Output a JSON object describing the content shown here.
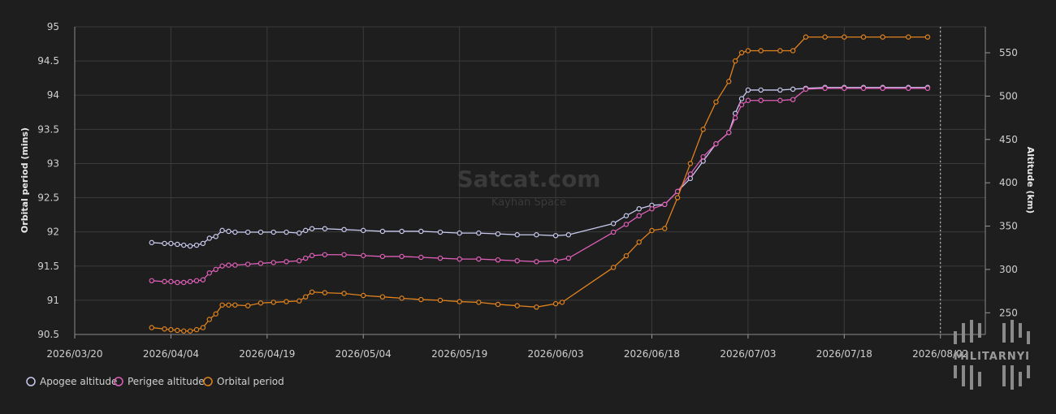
{
  "watermark": {
    "title": "Satcat.com",
    "subtitle": "Kayhan Space",
    "logo_text": "MILITARNYI"
  },
  "colors": {
    "background": "#1e1e1e",
    "grid": "#3b3b3b",
    "apogee": "#c9c9f0",
    "perigee": "#e05fb8",
    "period": "#e0821e"
  },
  "chart_data": {
    "type": "line",
    "xlabel": "",
    "ylabel": "Orbital period (mins)",
    "y2label": "Altitude (km)",
    "xlim": [
      "2026-03-20",
      "2026-08-09"
    ],
    "ylim": [
      90.5,
      95
    ],
    "y2lim": [
      225,
      580
    ],
    "x_ticks": [
      "2026/03/20",
      "2026/04/04",
      "2026/04/19",
      "2026/05/04",
      "2026/05/19",
      "2026/06/03",
      "2026/06/18",
      "2026/07/03",
      "2026/07/18",
      "2026/08/02"
    ],
    "y_ticks": [
      "90.5",
      "91",
      "91.5",
      "92",
      "92.5",
      "93",
      "93.5",
      "94",
      "94.5",
      "95"
    ],
    "y2_ticks": [
      "250",
      "300",
      "350",
      "400",
      "450",
      "500",
      "550"
    ],
    "grid": true,
    "legend_position": "bottom-left",
    "current_date_marker": "2026-08-02",
    "series": [
      {
        "name": "Apogee altitude",
        "axis": "right",
        "points": [
          [
            "2026-04-01",
            331
          ],
          [
            "2026-04-03",
            330
          ],
          [
            "2026-04-04",
            330
          ],
          [
            "2026-04-05",
            329
          ],
          [
            "2026-04-06",
            328
          ],
          [
            "2026-04-07",
            327
          ],
          [
            "2026-04-08",
            328
          ],
          [
            "2026-04-09",
            330
          ],
          [
            "2026-04-10",
            336
          ],
          [
            "2026-04-11",
            338
          ],
          [
            "2026-04-12",
            345
          ],
          [
            "2026-04-13",
            344
          ],
          [
            "2026-04-14",
            343
          ],
          [
            "2026-04-16",
            343
          ],
          [
            "2026-04-18",
            343
          ],
          [
            "2026-04-20",
            343
          ],
          [
            "2026-04-22",
            343
          ],
          [
            "2026-04-24",
            342
          ],
          [
            "2026-04-25",
            345
          ],
          [
            "2026-04-26",
            347
          ],
          [
            "2026-04-28",
            347
          ],
          [
            "2026-05-01",
            346
          ],
          [
            "2026-05-04",
            345
          ],
          [
            "2026-05-07",
            344
          ],
          [
            "2026-05-10",
            344
          ],
          [
            "2026-05-13",
            344
          ],
          [
            "2026-05-16",
            343
          ],
          [
            "2026-05-19",
            342
          ],
          [
            "2026-05-22",
            342
          ],
          [
            "2026-05-25",
            341
          ],
          [
            "2026-05-28",
            340
          ],
          [
            "2026-05-31",
            340
          ],
          [
            "2026-06-03",
            339
          ],
          [
            "2026-06-05",
            340
          ],
          [
            "2026-06-12",
            353
          ],
          [
            "2026-06-14",
            362
          ],
          [
            "2026-06-16",
            370
          ],
          [
            "2026-06-18",
            374
          ],
          [
            "2026-06-20",
            375
          ],
          [
            "2026-06-22",
            390
          ],
          [
            "2026-06-24",
            405
          ],
          [
            "2026-06-26",
            425
          ],
          [
            "2026-06-28",
            445
          ],
          [
            "2026-06-30",
            458
          ],
          [
            "2026-07-01",
            480
          ],
          [
            "2026-07-02",
            497
          ],
          [
            "2026-07-03",
            507
          ],
          [
            "2026-07-05",
            507
          ],
          [
            "2026-07-08",
            507
          ],
          [
            "2026-07-10",
            508
          ],
          [
            "2026-07-12",
            509
          ],
          [
            "2026-07-15",
            510
          ],
          [
            "2026-07-18",
            510
          ],
          [
            "2026-07-21",
            510
          ],
          [
            "2026-07-24",
            510
          ],
          [
            "2026-07-28",
            510
          ],
          [
            "2026-07-31",
            510
          ]
        ]
      },
      {
        "name": "Perigee altitude",
        "axis": "right",
        "points": [
          [
            "2026-04-01",
            287
          ],
          [
            "2026-04-03",
            286
          ],
          [
            "2026-04-04",
            286
          ],
          [
            "2026-04-05",
            285
          ],
          [
            "2026-04-06",
            285
          ],
          [
            "2026-04-07",
            286
          ],
          [
            "2026-04-08",
            287
          ],
          [
            "2026-04-09",
            288
          ],
          [
            "2026-04-10",
            296
          ],
          [
            "2026-04-11",
            300
          ],
          [
            "2026-04-12",
            304
          ],
          [
            "2026-04-13",
            305
          ],
          [
            "2026-04-14",
            305
          ],
          [
            "2026-04-16",
            306
          ],
          [
            "2026-04-18",
            307
          ],
          [
            "2026-04-20",
            308
          ],
          [
            "2026-04-22",
            309
          ],
          [
            "2026-04-24",
            310
          ],
          [
            "2026-04-25",
            313
          ],
          [
            "2026-04-26",
            316
          ],
          [
            "2026-04-28",
            317
          ],
          [
            "2026-05-01",
            317
          ],
          [
            "2026-05-04",
            316
          ],
          [
            "2026-05-07",
            315
          ],
          [
            "2026-05-10",
            315
          ],
          [
            "2026-05-13",
            314
          ],
          [
            "2026-05-16",
            313
          ],
          [
            "2026-05-19",
            312
          ],
          [
            "2026-05-22",
            312
          ],
          [
            "2026-05-25",
            311
          ],
          [
            "2026-05-28",
            310
          ],
          [
            "2026-05-31",
            309
          ],
          [
            "2026-06-03",
            310
          ],
          [
            "2026-06-05",
            313
          ],
          [
            "2026-06-12",
            343
          ],
          [
            "2026-06-14",
            352
          ],
          [
            "2026-06-16",
            362
          ],
          [
            "2026-06-18",
            370
          ],
          [
            "2026-06-20",
            375
          ],
          [
            "2026-06-22",
            390
          ],
          [
            "2026-06-24",
            410
          ],
          [
            "2026-06-26",
            430
          ],
          [
            "2026-06-28",
            445
          ],
          [
            "2026-06-30",
            458
          ],
          [
            "2026-07-01",
            475
          ],
          [
            "2026-07-02",
            490
          ],
          [
            "2026-07-03",
            495
          ],
          [
            "2026-07-05",
            495
          ],
          [
            "2026-07-08",
            495
          ],
          [
            "2026-07-10",
            496
          ],
          [
            "2026-07-12",
            508
          ],
          [
            "2026-07-15",
            509
          ],
          [
            "2026-07-18",
            509
          ],
          [
            "2026-07-21",
            509
          ],
          [
            "2026-07-24",
            509
          ],
          [
            "2026-07-28",
            509
          ],
          [
            "2026-07-31",
            509
          ]
        ]
      },
      {
        "name": "Orbital period",
        "axis": "left",
        "points": [
          [
            "2026-04-01",
            90.6
          ],
          [
            "2026-04-03",
            90.58
          ],
          [
            "2026-04-04",
            90.57
          ],
          [
            "2026-04-05",
            90.56
          ],
          [
            "2026-04-06",
            90.55
          ],
          [
            "2026-04-07",
            90.55
          ],
          [
            "2026-04-08",
            90.57
          ],
          [
            "2026-04-09",
            90.6
          ],
          [
            "2026-04-10",
            90.72
          ],
          [
            "2026-04-11",
            90.8
          ],
          [
            "2026-04-12",
            90.93
          ],
          [
            "2026-04-13",
            90.93
          ],
          [
            "2026-04-14",
            90.93
          ],
          [
            "2026-04-16",
            90.92
          ],
          [
            "2026-04-18",
            90.96
          ],
          [
            "2026-04-20",
            90.97
          ],
          [
            "2026-04-22",
            90.98
          ],
          [
            "2026-04-24",
            90.99
          ],
          [
            "2026-04-25",
            91.05
          ],
          [
            "2026-04-26",
            91.12
          ],
          [
            "2026-04-28",
            91.11
          ],
          [
            "2026-05-01",
            91.1
          ],
          [
            "2026-05-04",
            91.07
          ],
          [
            "2026-05-07",
            91.05
          ],
          [
            "2026-05-10",
            91.03
          ],
          [
            "2026-05-13",
            91.01
          ],
          [
            "2026-05-16",
            91.0
          ],
          [
            "2026-05-19",
            90.98
          ],
          [
            "2026-05-22",
            90.97
          ],
          [
            "2026-05-25",
            90.94
          ],
          [
            "2026-05-28",
            90.92
          ],
          [
            "2026-05-31",
            90.9
          ],
          [
            "2026-06-03",
            90.95
          ],
          [
            "2026-06-04",
            90.97
          ],
          [
            "2026-06-12",
            91.48
          ],
          [
            "2026-06-14",
            91.65
          ],
          [
            "2026-06-16",
            91.85
          ],
          [
            "2026-06-18",
            92.02
          ],
          [
            "2026-06-20",
            92.05
          ],
          [
            "2026-06-22",
            92.5
          ],
          [
            "2026-06-24",
            93.0
          ],
          [
            "2026-06-26",
            93.5
          ],
          [
            "2026-06-28",
            93.9
          ],
          [
            "2026-06-30",
            94.2
          ],
          [
            "2026-07-01",
            94.5
          ],
          [
            "2026-07-02",
            94.62
          ],
          [
            "2026-07-03",
            94.65
          ],
          [
            "2026-07-05",
            94.65
          ],
          [
            "2026-07-08",
            94.65
          ],
          [
            "2026-07-10",
            94.65
          ],
          [
            "2026-07-12",
            94.85
          ],
          [
            "2026-07-15",
            94.85
          ],
          [
            "2026-07-18",
            94.85
          ],
          [
            "2026-07-21",
            94.85
          ],
          [
            "2026-07-24",
            94.85
          ],
          [
            "2026-07-28",
            94.85
          ],
          [
            "2026-07-31",
            94.85
          ]
        ]
      }
    ]
  }
}
